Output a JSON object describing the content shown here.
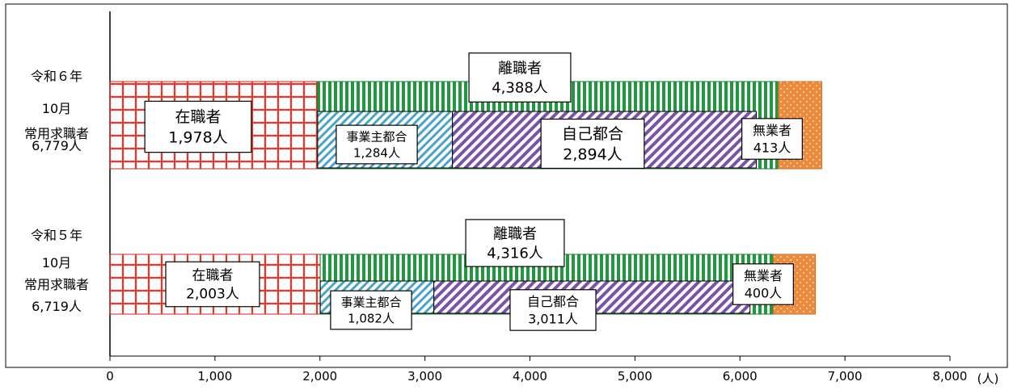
{
  "chart_data": {
    "type": "bar",
    "orientation": "horizontal",
    "stacked": true,
    "x_unit": "(人)",
    "xlim": [
      0,
      8000
    ],
    "x_ticks": [
      "0",
      "1,000",
      "2,000",
      "3,000",
      "4,000",
      "5,000",
      "6,000",
      "7,000",
      "8,000"
    ],
    "grid": false,
    "rows": [
      {
        "label_lines": [
          "令和６年",
          "10月",
          "常用求職者",
          "6,779人"
        ],
        "total": 6779,
        "employed": {
          "value": 1978,
          "label_lines": [
            "在職者",
            "1,978人"
          ]
        },
        "separated": {
          "value": 4388,
          "label_lines": [
            "離職者",
            "4,388人"
          ]
        },
        "employer": {
          "value": 1284,
          "label_lines": [
            "事業主都合",
            "1,284人"
          ]
        },
        "voluntary": {
          "value": 2894,
          "label_lines": [
            "自己都合",
            "2,894人"
          ]
        },
        "unemployed": {
          "value": 413,
          "label_lines": [
            "無業者",
            "413人"
          ]
        }
      },
      {
        "label_lines": [
          "令和５年",
          "10月",
          "常用求職者",
          "6,719人"
        ],
        "total": 6719,
        "employed": {
          "value": 2003,
          "label_lines": [
            "在職者",
            "2,003人"
          ]
        },
        "separated": {
          "value": 4316,
          "label_lines": [
            "離職者",
            "4,316人"
          ]
        },
        "employer": {
          "value": 1082,
          "label_lines": [
            "事業主都合",
            "1,082人"
          ]
        },
        "voluntary": {
          "value": 3011,
          "label_lines": [
            "自己都合",
            "3,011人"
          ]
        },
        "unemployed": {
          "value": 400,
          "label_lines": [
            "無業者",
            "400人"
          ]
        }
      }
    ],
    "colors": {
      "employed": "#e8362a",
      "separated": "#1e9a3c",
      "employer": "#4aa3c8",
      "voluntary": "#7a52a8",
      "unemployed": "#ef8a3a"
    }
  }
}
